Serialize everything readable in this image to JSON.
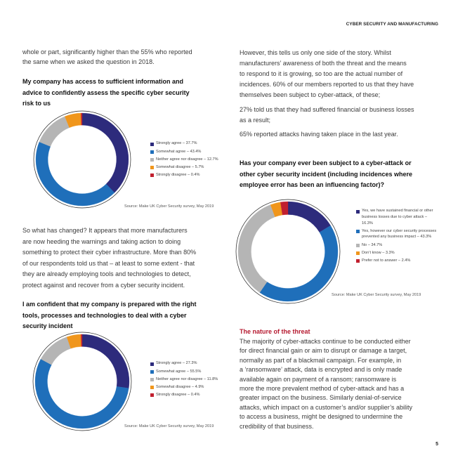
{
  "header": {
    "title": "CYBER SECURITY AND MANUFACTURING"
  },
  "left": {
    "intro_lines": [
      "whole or part, significantly higher than the 55% who reported",
      "the same when we asked the question in 2018."
    ],
    "q1_lines": [
      "My company has access to sufficient information and",
      "advice to confidently assess the specific cyber security",
      "risk to us"
    ],
    "para2_lines": [
      "So what has changed? It appears that more manufacturers",
      "are now heeding the warnings and taking action to doing",
      "something to protect their cyber infrastructure. More than 80%",
      "of our respondents told us that – at least to some extent - that",
      "they are already employing tools and technologies to detect,",
      "protect against and recover from a cyber security incident."
    ],
    "q2_lines": [
      "I am confident that my company is prepared with the right",
      "tools, processes and technologies to deal with a cyber",
      "security incident"
    ]
  },
  "right": {
    "para1_lines": [
      "However, this tells us only one side of the story. Whilst",
      "manufacturers’ awareness of both the threat and the means",
      "to respond to it is growing, so too are the actual number of",
      "incidences. 60% of our members reported to us that they have",
      "themselves been subject to cyber-attack, of these;"
    ],
    "para2_lines": [
      "27% told us that they had suffered financial or business losses",
      "as a result;"
    ],
    "para3_lines": [
      "65% reported attacks having taken place in the last year."
    ],
    "q3_lines": [
      "Has your company ever been subject to a cyber-attack or",
      "other cyber security incident (including incidences where",
      "employee error has been an influencing factor)?"
    ],
    "threat_heading": "The nature of the threat",
    "threat_lines": [
      "The majority of cyber-attacks continue to be conducted either",
      "for direct financial gain or aim to disrupt or damage a target,",
      "normally as part of a blackmail campaign. For example, in",
      "a ‘ransomware’ attack, data is encrypted and is only made",
      "available again on payment of a ransom; ransomware is",
      "more the more prevalent method of cyber-attack and has a",
      "greater impact on the business. Similarly denial-of-service",
      "attacks, which impact on a customer’s and/or supplier’s ability",
      "to access a business, might be designed to undermine the",
      "credibility of that business."
    ]
  },
  "page_number": "5",
  "colors": {
    "navy": "#2d2b7c",
    "blue": "#1f6fba",
    "gray": "#b5b5b5",
    "orange": "#f0961c",
    "red": "#c1202f",
    "threat": "#b5192f"
  },
  "chart_data": [
    {
      "type": "pie",
      "donut": true,
      "title": "My company has access to sufficient information and advice to confidently assess the specific cyber security risk to us",
      "categories": [
        "Strongly agree",
        "Somewhat agree",
        "Neither agree nor disagree",
        "Somewhat disagree",
        "Strongly disagree"
      ],
      "values": [
        37.7,
        43.4,
        12.7,
        5.7,
        0.4
      ],
      "labels": [
        "Strongly agree – 37.7%",
        "Somewhat agree – 43.4%",
        "Neither agree nor disagree – 12.7%",
        "Somewhat disagree – 5.7%",
        "Strongly disagree – 0.4%"
      ],
      "colors": [
        "#2d2b7c",
        "#1f6fba",
        "#b5b5b5",
        "#f0961c",
        "#c1202f"
      ],
      "legend": "right",
      "source": "Source: Make UK Cyber Security survey, May 2019"
    },
    {
      "type": "pie",
      "donut": true,
      "title": "Has your company ever been subject to a cyber-attack or other cyber security incident (including incidences where employee error has been an influencing factor)?",
      "categories": [
        "Yes, we have sustained financial or other business losses due to cyber attack",
        "Yes, however our cyber security processes prevented any business impact",
        "No",
        "Don't know",
        "Prefer not to answer"
      ],
      "values": [
        16.3,
        43.3,
        34.7,
        3.3,
        2.4
      ],
      "labels": [
        "Yes, we have sustained financial or other business losses due to cyber attack – 16.3%",
        "Yes, however our cyber security processes prevented any business impact – 43.3%",
        "No – 34.7%",
        "Don’t know – 3.3%",
        "Prefer not to answer – 2.4%"
      ],
      "colors": [
        "#2d2b7c",
        "#1f6fba",
        "#b5b5b5",
        "#f0961c",
        "#c1202f"
      ],
      "legend": "right",
      "source": "Source: Make UK Cyber Security survey, May 2019"
    },
    {
      "type": "pie",
      "donut": true,
      "title": "I am confident that my company is prepared with the right tools, processes and technologies to deal with a cyber security incident",
      "categories": [
        "Strongly agree",
        "Somewhat agree",
        "Neither agree nor disagree",
        "Somewhat disagree",
        "Strongly disagree"
      ],
      "values": [
        27.3,
        55.5,
        11.8,
        4.9,
        0.4
      ],
      "labels": [
        "Strongly agree – 27.3%",
        "Somewhat agree – 55.5%",
        "Neither agree nor disagree – 11.8%",
        "Somewhat disagree – 4.9%",
        "Strongly disagree – 0.4%"
      ],
      "colors": [
        "#2d2b7c",
        "#1f6fba",
        "#b5b5b5",
        "#f0961c",
        "#c1202f"
      ],
      "legend": "right",
      "source": "Source: Make UK Cyber Security survey, May 2019"
    }
  ]
}
